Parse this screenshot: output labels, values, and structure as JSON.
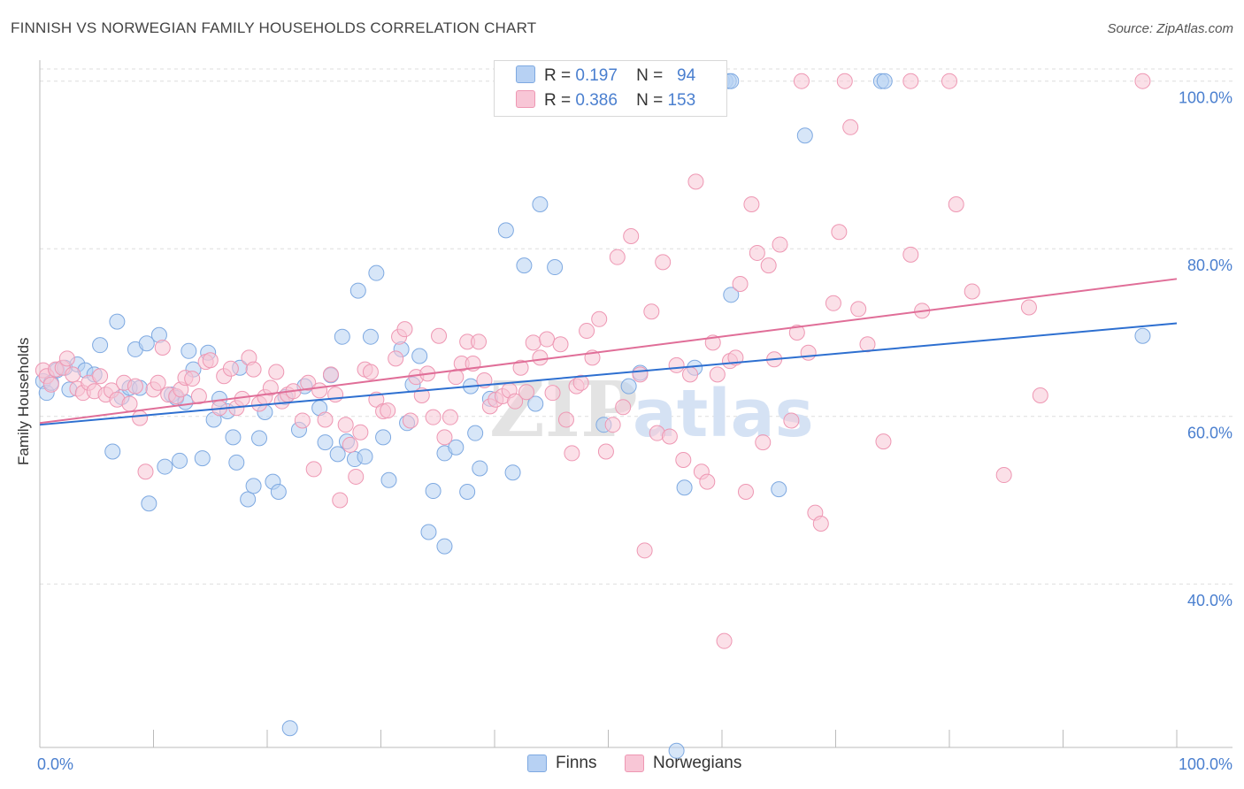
{
  "title": "FINNISH VS NORWEGIAN FAMILY HOUSEHOLDS CORRELATION CHART",
  "source": "Source: ZipAtlas.com",
  "watermark": {
    "zip": "ZIP",
    "atlas": "atlas"
  },
  "legend": {
    "r_label": "R =",
    "n_label": "N =",
    "finns": {
      "r": "0.197",
      "n": "94"
    },
    "norwegians": {
      "r": "0.386",
      "n": "153"
    }
  },
  "colors": {
    "finns_fill": "#b7d1f3",
    "finns_stroke": "#7ea9e1",
    "finns_line": "#2d6fd0",
    "norw_fill": "#f8c6d6",
    "norw_stroke": "#ee97b3",
    "norw_line": "#e06e98",
    "tick_label": "#4a7fcf",
    "grid": "#dddddd"
  },
  "chart_data": {
    "type": "scatter",
    "title": "FINNISH VS NORWEGIAN FAMILY HOUSEHOLDS CORRELATION CHART",
    "xlabel": "",
    "ylabel": "Family Households",
    "xlim": [
      0,
      100
    ],
    "ylim": [
      20.5,
      102.5
    ],
    "x_tick_labels": [
      "0.0%",
      "100.0%"
    ],
    "y_ticks": [
      40,
      60,
      80,
      100
    ],
    "y_tick_labels": [
      "40.0%",
      "60.0%",
      "80.0%",
      "100.0%"
    ],
    "grid": true,
    "legend_position": "top-center",
    "bottom_legend": [
      "Finns",
      "Norwegians"
    ],
    "series": [
      {
        "name": "Finns",
        "trend": {
          "x": [
            0,
            100
          ],
          "y": [
            59.0,
            71.1
          ]
        },
        "points": [
          [
            0.3,
            64.2
          ],
          [
            0.6,
            62.8
          ],
          [
            1.0,
            64.0
          ],
          [
            1.5,
            65.5
          ],
          [
            2.2,
            65.8
          ],
          [
            2.6,
            63.2
          ],
          [
            3.3,
            66.2
          ],
          [
            4.0,
            65.5
          ],
          [
            4.8,
            65.0
          ],
          [
            5.3,
            68.5
          ],
          [
            6.4,
            55.8
          ],
          [
            6.8,
            71.3
          ],
          [
            7.2,
            62.3
          ],
          [
            7.9,
            63.4
          ],
          [
            8.4,
            68.0
          ],
          [
            8.8,
            63.4
          ],
          [
            9.4,
            68.7
          ],
          [
            9.6,
            49.6
          ],
          [
            10.5,
            69.7
          ],
          [
            11.0,
            54.0
          ],
          [
            11.6,
            62.6
          ],
          [
            12.0,
            62.2
          ],
          [
            12.3,
            54.7
          ],
          [
            12.8,
            61.7
          ],
          [
            13.1,
            67.8
          ],
          [
            13.5,
            65.6
          ],
          [
            14.3,
            55.0
          ],
          [
            14.8,
            67.6
          ],
          [
            15.3,
            59.6
          ],
          [
            15.8,
            62.1
          ],
          [
            16.5,
            60.6
          ],
          [
            17.0,
            57.5
          ],
          [
            17.3,
            54.5
          ],
          [
            17.6,
            65.8
          ],
          [
            18.3,
            50.1
          ],
          [
            18.8,
            51.7
          ],
          [
            19.3,
            57.4
          ],
          [
            19.8,
            60.5
          ],
          [
            20.5,
            52.2
          ],
          [
            21.0,
            51.0
          ],
          [
            21.6,
            62.3
          ],
          [
            22.0,
            22.8
          ],
          [
            22.8,
            58.4
          ],
          [
            23.3,
            63.6
          ],
          [
            24.6,
            61.0
          ],
          [
            25.1,
            56.9
          ],
          [
            25.6,
            64.9
          ],
          [
            26.2,
            55.5
          ],
          [
            26.6,
            69.5
          ],
          [
            27.0,
            57.0
          ],
          [
            27.7,
            54.9
          ],
          [
            28.0,
            75.0
          ],
          [
            28.6,
            55.2
          ],
          [
            29.1,
            69.5
          ],
          [
            29.6,
            77.1
          ],
          [
            30.2,
            57.5
          ],
          [
            30.7,
            52.4
          ],
          [
            31.8,
            68.0
          ],
          [
            32.3,
            59.2
          ],
          [
            32.8,
            63.8
          ],
          [
            33.4,
            67.2
          ],
          [
            34.2,
            46.2
          ],
          [
            34.6,
            51.1
          ],
          [
            35.6,
            44.5
          ],
          [
            35.6,
            55.6
          ],
          [
            36.6,
            56.3
          ],
          [
            37.6,
            51.0
          ],
          [
            37.9,
            63.6
          ],
          [
            38.3,
            58.0
          ],
          [
            38.7,
            53.8
          ],
          [
            39.6,
            62.1
          ],
          [
            41.0,
            82.2
          ],
          [
            41.6,
            53.3
          ],
          [
            42.6,
            78.0
          ],
          [
            43.6,
            61.5
          ],
          [
            44.0,
            85.3
          ],
          [
            45.3,
            77.8
          ],
          [
            49.6,
            59.0
          ],
          [
            51.8,
            63.6
          ],
          [
            52.8,
            65.2
          ],
          [
            56.0,
            20.1
          ],
          [
            56.7,
            51.5
          ],
          [
            57.6,
            65.8
          ],
          [
            60.0,
            100.0
          ],
          [
            60.3,
            100.0
          ],
          [
            60.6,
            100.0
          ],
          [
            60.8,
            100.0
          ],
          [
            60.8,
            74.5
          ],
          [
            65.0,
            51.3
          ],
          [
            67.3,
            93.5
          ],
          [
            74.0,
            100.0
          ],
          [
            74.3,
            100.0
          ],
          [
            97.0,
            69.6
          ]
        ]
      },
      {
        "name": "Norwegians",
        "trend": {
          "x": [
            0,
            100
          ],
          "y": [
            59.2,
            76.4
          ]
        },
        "points": [
          [
            0.3,
            65.5
          ],
          [
            0.6,
            64.8
          ],
          [
            1.0,
            63.8
          ],
          [
            1.4,
            65.6
          ],
          [
            2.0,
            65.8
          ],
          [
            2.4,
            66.9
          ],
          [
            2.9,
            65.0
          ],
          [
            3.3,
            63.3
          ],
          [
            3.8,
            62.8
          ],
          [
            4.3,
            64.0
          ],
          [
            4.8,
            63.0
          ],
          [
            5.3,
            64.8
          ],
          [
            5.8,
            62.6
          ],
          [
            6.3,
            63.1
          ],
          [
            6.8,
            62.0
          ],
          [
            7.4,
            64.0
          ],
          [
            7.9,
            61.5
          ],
          [
            8.4,
            63.6
          ],
          [
            8.8,
            59.8
          ],
          [
            9.3,
            53.4
          ],
          [
            10.0,
            63.2
          ],
          [
            10.4,
            64.0
          ],
          [
            10.8,
            68.2
          ],
          [
            11.3,
            62.6
          ],
          [
            12.0,
            62.4
          ],
          [
            12.4,
            63.2
          ],
          [
            12.8,
            64.6
          ],
          [
            13.4,
            64.5
          ],
          [
            14.0,
            62.4
          ],
          [
            14.6,
            66.5
          ],
          [
            15.0,
            66.7
          ],
          [
            15.8,
            61.0
          ],
          [
            16.2,
            64.8
          ],
          [
            16.8,
            65.7
          ],
          [
            17.3,
            61.0
          ],
          [
            17.8,
            62.1
          ],
          [
            18.4,
            67.0
          ],
          [
            18.8,
            65.6
          ],
          [
            19.3,
            61.5
          ],
          [
            19.8,
            62.3
          ],
          [
            20.3,
            63.4
          ],
          [
            20.8,
            65.3
          ],
          [
            21.3,
            61.8
          ],
          [
            21.8,
            62.6
          ],
          [
            22.3,
            63.0
          ],
          [
            23.1,
            59.5
          ],
          [
            23.6,
            64.0
          ],
          [
            24.1,
            53.7
          ],
          [
            24.6,
            63.1
          ],
          [
            25.1,
            59.6
          ],
          [
            25.6,
            65.0
          ],
          [
            26.0,
            62.6
          ],
          [
            26.4,
            50.0
          ],
          [
            26.9,
            59.0
          ],
          [
            27.3,
            56.6
          ],
          [
            27.8,
            52.8
          ],
          [
            28.2,
            58.1
          ],
          [
            28.6,
            65.6
          ],
          [
            29.1,
            65.3
          ],
          [
            29.6,
            62.0
          ],
          [
            30.2,
            60.6
          ],
          [
            30.6,
            60.7
          ],
          [
            31.3,
            66.9
          ],
          [
            31.6,
            69.5
          ],
          [
            32.1,
            70.4
          ],
          [
            32.6,
            59.5
          ],
          [
            33.1,
            64.7
          ],
          [
            33.6,
            62.5
          ],
          [
            34.1,
            65.1
          ],
          [
            34.6,
            59.9
          ],
          [
            35.1,
            69.6
          ],
          [
            35.6,
            57.5
          ],
          [
            36.1,
            59.9
          ],
          [
            36.6,
            64.7
          ],
          [
            37.1,
            66.3
          ],
          [
            37.6,
            68.9
          ],
          [
            38.1,
            66.3
          ],
          [
            38.6,
            68.9
          ],
          [
            39.1,
            64.3
          ],
          [
            39.6,
            61.2
          ],
          [
            40.1,
            62.0
          ],
          [
            40.7,
            62.4
          ],
          [
            41.3,
            63.1
          ],
          [
            41.8,
            61.8
          ],
          [
            42.3,
            65.8
          ],
          [
            42.8,
            62.9
          ],
          [
            43.4,
            68.8
          ],
          [
            44.0,
            67.0
          ],
          [
            44.6,
            69.2
          ],
          [
            45.1,
            62.8
          ],
          [
            45.8,
            68.6
          ],
          [
            46.3,
            59.6
          ],
          [
            46.8,
            55.6
          ],
          [
            47.2,
            63.6
          ],
          [
            47.6,
            64.0
          ],
          [
            48.1,
            70.2
          ],
          [
            48.6,
            67.0
          ],
          [
            49.2,
            71.6
          ],
          [
            49.8,
            55.8
          ],
          [
            50.4,
            59.0
          ],
          [
            50.8,
            79.0
          ],
          [
            51.3,
            61.1
          ],
          [
            52.0,
            81.5
          ],
          [
            52.8,
            65.0
          ],
          [
            53.2,
            44.0
          ],
          [
            53.8,
            72.5
          ],
          [
            54.3,
            58.0
          ],
          [
            54.8,
            78.4
          ],
          [
            55.4,
            57.6
          ],
          [
            56.0,
            66.1
          ],
          [
            56.6,
            54.8
          ],
          [
            57.2,
            65.0
          ],
          [
            57.7,
            88.0
          ],
          [
            58.2,
            53.4
          ],
          [
            58.7,
            52.2
          ],
          [
            59.2,
            68.8
          ],
          [
            59.6,
            65.0
          ],
          [
            60.2,
            33.2
          ],
          [
            60.7,
            66.6
          ],
          [
            61.2,
            67.0
          ],
          [
            61.6,
            75.8
          ],
          [
            62.1,
            51.0
          ],
          [
            62.6,
            85.3
          ],
          [
            63.1,
            79.5
          ],
          [
            63.6,
            56.9
          ],
          [
            64.1,
            78.0
          ],
          [
            64.6,
            66.8
          ],
          [
            65.1,
            80.5
          ],
          [
            66.1,
            59.5
          ],
          [
            66.6,
            70.0
          ],
          [
            67.0,
            100.0
          ],
          [
            67.6,
            67.6
          ],
          [
            68.2,
            48.5
          ],
          [
            68.7,
            47.2
          ],
          [
            69.8,
            73.5
          ],
          [
            70.3,
            82.0
          ],
          [
            70.8,
            100.0
          ],
          [
            71.3,
            94.5
          ],
          [
            72.0,
            72.8
          ],
          [
            72.8,
            68.6
          ],
          [
            74.2,
            57.0
          ],
          [
            76.6,
            100.0
          ],
          [
            76.6,
            79.3
          ],
          [
            77.6,
            72.6
          ],
          [
            80.0,
            100.0
          ],
          [
            80.6,
            85.3
          ],
          [
            82.0,
            74.9
          ],
          [
            84.8,
            53.0
          ],
          [
            87.0,
            73.0
          ],
          [
            88.0,
            62.5
          ],
          [
            97.0,
            100.0
          ]
        ]
      }
    ]
  }
}
